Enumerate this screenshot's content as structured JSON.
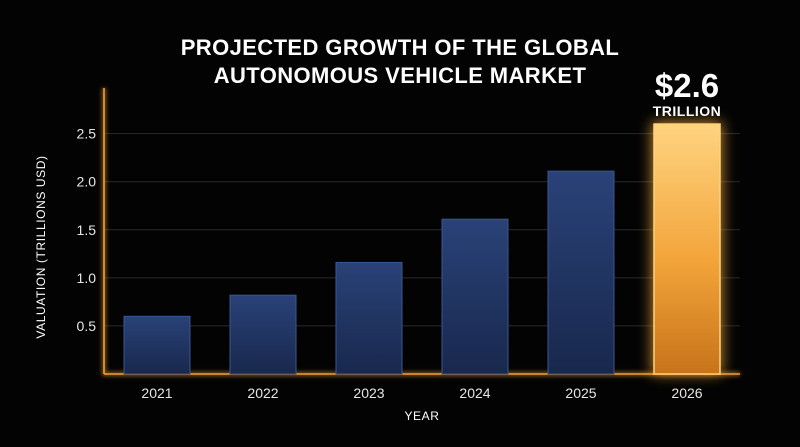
{
  "chart_data": {
    "type": "bar",
    "title_lines": [
      "PROJECTED GROWTH OF THE GLOBAL",
      "AUTONOMOUS VEHICLE MARKET"
    ],
    "xlabel": "YEAR",
    "ylabel": "VALUATION (TRILLIONS USD)",
    "categories": [
      "2021",
      "2022",
      "2023",
      "2024",
      "2025",
      "2026"
    ],
    "values": [
      0.6,
      0.82,
      1.16,
      1.61,
      2.11,
      2.6
    ],
    "yticks": [
      "0.5",
      "1.0",
      "1.5",
      "2.0",
      "2.5"
    ],
    "ylim": [
      0,
      2.85
    ],
    "grid": true,
    "highlight": {
      "index": 5,
      "value_label": "$2.6",
      "unit_label": "TRILLION"
    },
    "colors": {
      "background": "#030304",
      "bar": "#22386a",
      "bar_highlight": "#f4a93c",
      "axis": "#f0a030",
      "grid": "#2a2a2a"
    }
  }
}
